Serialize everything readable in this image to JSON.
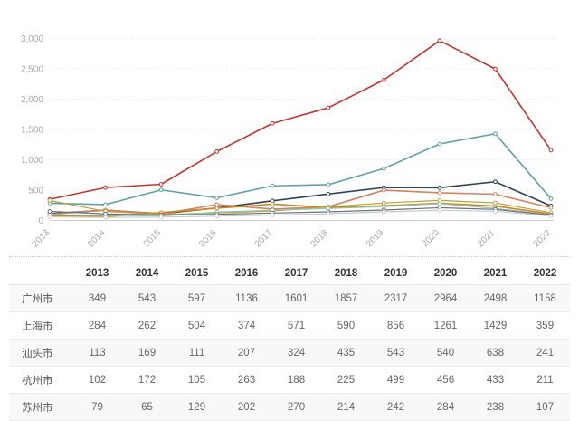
{
  "chart_data": {
    "type": "line",
    "title": "",
    "xlabel": "",
    "ylabel": "",
    "legend": "none",
    "grid": true,
    "ylim": [
      0,
      3000
    ],
    "y_ticks": [
      {
        "value": 0,
        "label": "0"
      },
      {
        "value": 500,
        "label": "500"
      },
      {
        "value": 1000,
        "label": "1,000"
      },
      {
        "value": 1500,
        "label": "1,500"
      },
      {
        "value": 2000,
        "label": "2,000"
      },
      {
        "value": 2500,
        "label": "2,500"
      },
      {
        "value": 3000,
        "label": "3,000"
      }
    ],
    "categories": [
      "2013",
      "2014",
      "2015",
      "2016",
      "2017",
      "2018",
      "2019",
      "2020",
      "2021",
      "2022"
    ],
    "series": [
      {
        "name": "广州市",
        "color": "#c23531",
        "values": [
          349,
          543,
          597,
          1136,
          1601,
          1857,
          2317,
          2964,
          2498,
          1158
        ]
      },
      {
        "name": "上海市",
        "color": "#61a0a8",
        "values": [
          284,
          262,
          504,
          374,
          571,
          590,
          856,
          1261,
          1429,
          359
        ]
      },
      {
        "name": "汕头市",
        "color": "#2f4554",
        "values": [
          113,
          169,
          111,
          207,
          324,
          435,
          543,
          540,
          638,
          241
        ]
      },
      {
        "name": "杭州市",
        "color": "#d48265",
        "values": [
          102,
          172,
          105,
          263,
          188,
          225,
          499,
          456,
          433,
          211
        ]
      },
      {
        "name": "苏州市",
        "color": "#ca8622",
        "values": [
          79,
          65,
          129,
          202,
          270,
          214,
          242,
          284,
          238,
          107
        ]
      },
      {
        "name": "",
        "estimated": true,
        "color": "#b9a23d",
        "values": [
          330,
          150,
          98,
          125,
          155,
          225,
          288,
          330,
          290,
          128
        ]
      },
      {
        "name": "",
        "estimated": true,
        "color": "#91c7ae",
        "values": [
          95,
          84,
          72,
          138,
          168,
          198,
          230,
          278,
          198,
          92
        ]
      },
      {
        "name": "",
        "estimated": true,
        "color": "#6e7074",
        "values": [
          150,
          108,
          88,
          102,
          122,
          142,
          172,
          210,
          182,
          88
        ]
      },
      {
        "name": "",
        "estimated": true,
        "color": "#c4ccd3",
        "values": [
          60,
          50,
          55,
          70,
          90,
          110,
          142,
          168,
          150,
          75
        ]
      }
    ]
  },
  "table": {
    "columns": [
      "",
      "2013",
      "2014",
      "2015",
      "2016",
      "2017",
      "2018",
      "2019",
      "2020",
      "2021",
      "2022"
    ],
    "rows": [
      {
        "label": "广州市",
        "values": [
          349,
          543,
          597,
          1136,
          1601,
          1857,
          2317,
          2964,
          2498,
          1158
        ]
      },
      {
        "label": "上海市",
        "values": [
          284,
          262,
          504,
          374,
          571,
          590,
          856,
          1261,
          1429,
          359
        ]
      },
      {
        "label": "汕头市",
        "values": [
          113,
          169,
          111,
          207,
          324,
          435,
          543,
          540,
          638,
          241
        ]
      },
      {
        "label": "杭州市",
        "values": [
          102,
          172,
          105,
          263,
          188,
          225,
          499,
          456,
          433,
          211
        ]
      },
      {
        "label": "苏州市",
        "values": [
          79,
          65,
          129,
          202,
          270,
          214,
          242,
          284,
          238,
          107
        ]
      }
    ]
  },
  "colors": {
    "axis_label": "#aaaaaa",
    "axis_line": "#cccccc",
    "grid_line": "#eeeeee",
    "divider": "#cfcfcf",
    "header_text": "#333333",
    "cell_text": "#666666",
    "row_stripe": "#f8f8f8"
  }
}
